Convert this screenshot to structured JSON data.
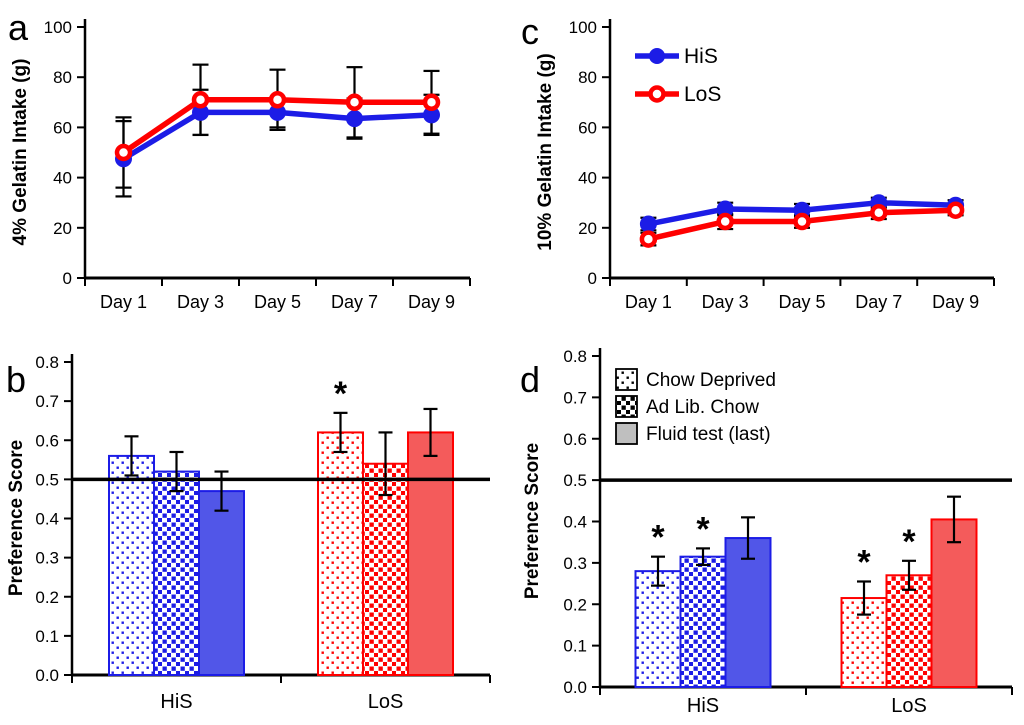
{
  "figure": {
    "title": "Gelatin intake and preference figure",
    "sig_marker": "*",
    "colors": {
      "blue": "#1C1CE6",
      "red": "#FF0000",
      "blue_fill": "#5156E8",
      "red_fill": "#F45B5B",
      "gray_fill": "#BFBFBF",
      "black": "#000000",
      "white": "#FFFFFF"
    }
  },
  "chart_data": [
    {
      "id": "a",
      "letter": "a",
      "type": "line",
      "ylabel": "4% Gelatin Intake (g)",
      "ylim": [
        0,
        100
      ],
      "yticks": [
        0,
        20,
        40,
        60,
        80,
        100
      ],
      "categories": [
        "Day 1",
        "Day 3",
        "Day 5",
        "Day 7",
        "Day 9"
      ],
      "grid": false,
      "legend": false,
      "series": [
        {
          "name": "HiS",
          "color": "blue",
          "marker": "filled",
          "values": [
            47.5,
            66,
            66,
            63.5,
            65
          ],
          "errors": [
            15,
            9,
            6,
            8,
            8
          ]
        },
        {
          "name": "LoS",
          "color": "red",
          "marker": "open",
          "values": [
            50,
            71,
            71,
            70,
            70
          ],
          "errors": [
            14,
            14,
            12,
            14,
            12.5
          ]
        }
      ]
    },
    {
      "id": "c",
      "letter": "c",
      "type": "line",
      "ylabel": "10% Gelatin Intake (g)",
      "ylim": [
        0,
        100
      ],
      "yticks": [
        0,
        20,
        40,
        60,
        80,
        100
      ],
      "categories": [
        "Day 1",
        "Day 3",
        "Day 5",
        "Day 7",
        "Day 9"
      ],
      "grid": false,
      "legend": true,
      "series": [
        {
          "name": "HiS",
          "color": "blue",
          "marker": "filled",
          "values": [
            21.5,
            27.5,
            27,
            30,
            29
          ],
          "errors": [
            2.5,
            2.5,
            2.5,
            2,
            2
          ]
        },
        {
          "name": "LoS",
          "color": "red",
          "marker": "open",
          "values": [
            15.5,
            22.5,
            22.5,
            26,
            27
          ],
          "errors": [
            2.5,
            3,
            2.5,
            2.5,
            2
          ]
        }
      ]
    },
    {
      "id": "b",
      "letter": "b",
      "type": "bar",
      "ylabel": "Preference Score",
      "ylim": [
        0,
        0.8
      ],
      "ytick_step": 0.1,
      "ref_line": 0.5,
      "legend": null,
      "groups": [
        {
          "label": "HiS",
          "color": "blue",
          "bars": [
            {
              "pattern": "dots",
              "value": 0.56,
              "err": 0.05,
              "sig": false
            },
            {
              "pattern": "checks",
              "value": 0.52,
              "err": 0.05,
              "sig": false
            },
            {
              "pattern": "solid",
              "value": 0.47,
              "err": 0.05,
              "sig": false
            }
          ]
        },
        {
          "label": "LoS",
          "color": "red",
          "bars": [
            {
              "pattern": "dots",
              "value": 0.62,
              "err": 0.05,
              "sig": true
            },
            {
              "pattern": "checks",
              "value": 0.54,
              "err": 0.08,
              "sig": false
            },
            {
              "pattern": "solid",
              "value": 0.62,
              "err": 0.06,
              "sig": false
            }
          ]
        }
      ]
    },
    {
      "id": "d",
      "letter": "d",
      "type": "bar",
      "ylabel": "Preference Score",
      "ylim": [
        0,
        0.8
      ],
      "ytick_step": 0.1,
      "ref_line": 0.5,
      "legend": {
        "entries": [
          {
            "pattern": "dots",
            "label": "Chow Deprived"
          },
          {
            "pattern": "checks",
            "label": "Ad Lib. Chow"
          },
          {
            "pattern": "solid",
            "label": "Fluid test (last)"
          }
        ]
      },
      "groups": [
        {
          "label": "HiS",
          "color": "blue",
          "bars": [
            {
              "pattern": "dots",
              "value": 0.28,
              "err": 0.035,
              "sig": true
            },
            {
              "pattern": "checks",
              "value": 0.315,
              "err": 0.02,
              "sig": true
            },
            {
              "pattern": "solid",
              "value": 0.36,
              "err": 0.05,
              "sig": false
            }
          ]
        },
        {
          "label": "LoS",
          "color": "red",
          "bars": [
            {
              "pattern": "dots",
              "value": 0.215,
              "err": 0.04,
              "sig": true
            },
            {
              "pattern": "checks",
              "value": 0.27,
              "err": 0.035,
              "sig": true
            },
            {
              "pattern": "solid",
              "value": 0.405,
              "err": 0.055,
              "sig": false
            }
          ]
        }
      ]
    }
  ]
}
